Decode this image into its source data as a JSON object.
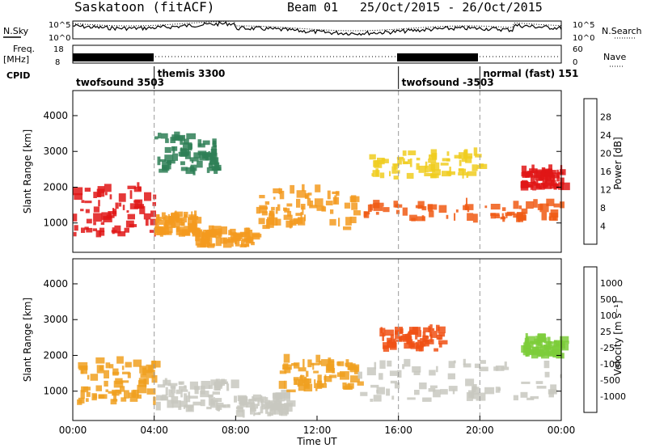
{
  "header": {
    "station": "Saskatoon (fitACF)",
    "beam": "Beam 01",
    "date_range": "25/Oct/2015 - 26/Oct/2015"
  },
  "top_panels": {
    "nsky_label": "N.Sky",
    "nsearch_label": "N.Search",
    "noise_ticks": [
      "10^5",
      "10^0"
    ],
    "freq_label_1": "Freq.",
    "freq_label_2": "[MHz]",
    "freq_ticks": [
      "18",
      "8"
    ],
    "nave_label": "Nave",
    "nave_ticks": [
      "60",
      "0"
    ],
    "cpid_label": "CPID",
    "cpid_segments": [
      {
        "label": "twofsound 3503",
        "start": 0,
        "end": 4
      },
      {
        "label": "themis 3300",
        "start": 4,
        "end": 16
      },
      {
        "label": "twofsound -3503",
        "start": 16,
        "end": 20
      },
      {
        "label": "normal (fast) 151",
        "start": 20,
        "end": 24
      }
    ]
  },
  "chart_data": [
    {
      "type": "heatmap",
      "name": "power",
      "title": "",
      "xlabel": "",
      "ylabel": "Slant Range [km]",
      "xlim": [
        0,
        24
      ],
      "ylim": [
        180,
        4700
      ],
      "y_ticks": [
        1000,
        2000,
        3000,
        4000
      ],
      "colorbar": {
        "label": "Power [dB]",
        "ticks": [
          "4",
          "8",
          "12",
          "16",
          "20",
          "24",
          "28"
        ],
        "colors": [
          "#1010ee",
          "#2a58b8",
          "#2e7f56",
          "#4fa04a",
          "#9ccc3c",
          "#f0cc20",
          "#f39a1e",
          "#f05a14",
          "#e01616",
          "#d00000"
        ]
      },
      "bands": [
        {
          "x": [
            0,
            4
          ],
          "y": [
            600,
            2000
          ],
          "level": 26
        },
        {
          "x": [
            4,
            6
          ],
          "y": [
            600,
            1200
          ],
          "level": 20
        },
        {
          "x": [
            6,
            9
          ],
          "y": [
            300,
            700
          ],
          "level": 22
        },
        {
          "x": [
            9,
            14
          ],
          "y": [
            800,
            1900
          ],
          "level": 22
        },
        {
          "x": [
            14,
            24
          ],
          "y": [
            1000,
            1500
          ],
          "level": 24
        },
        {
          "x": [
            22,
            24
          ],
          "y": [
            1900,
            2400
          ],
          "level": 28
        },
        {
          "x": [
            4,
            7
          ],
          "y": [
            2300,
            3400
          ],
          "level": 8
        },
        {
          "x": [
            14.5,
            20
          ],
          "y": [
            2200,
            2900
          ],
          "level": 16
        }
      ]
    },
    {
      "type": "heatmap",
      "name": "velocity",
      "title": "",
      "xlabel": "Time UT",
      "ylabel": "Slant Range [km]",
      "xlim": [
        0,
        24
      ],
      "ylim": [
        180,
        4700
      ],
      "y_ticks": [
        1000,
        2000,
        3000,
        4000
      ],
      "x_ticks": [
        "00:00",
        "04:00",
        "08:00",
        "12:00",
        "16:00",
        "20:00",
        "00:00"
      ],
      "colorbar": {
        "label": "Velocity [m s⁻¹]",
        "ticks": [
          "1000",
          "500",
          "100",
          "25",
          "-25",
          "-100",
          "-500",
          "-1000"
        ],
        "colors": [
          "#1a3ecb",
          "#2f6f60",
          "#3e9b44",
          "#7ccc3a",
          "#c8c8c0",
          "#f0a020",
          "#f07a18",
          "#f05014",
          "#e02010",
          "#d00000"
        ]
      },
      "bands": [
        {
          "x": [
            0,
            4
          ],
          "y": [
            600,
            1800
          ],
          "level": -200
        },
        {
          "x": [
            4,
            8
          ],
          "y": [
            400,
            1200
          ],
          "level": 0
        },
        {
          "x": [
            8,
            10.5
          ],
          "y": [
            250,
            800
          ],
          "level": 0
        },
        {
          "x": [
            10,
            14
          ],
          "y": [
            900,
            1800
          ],
          "level": -150
        },
        {
          "x": [
            14,
            24
          ],
          "y": [
            700,
            1800
          ],
          "level": 0
        },
        {
          "x": [
            15,
            18
          ],
          "y": [
            2100,
            2700
          ],
          "level": -300
        },
        {
          "x": [
            22,
            24
          ],
          "y": [
            1900,
            2400
          ],
          "level": 200
        }
      ]
    }
  ]
}
